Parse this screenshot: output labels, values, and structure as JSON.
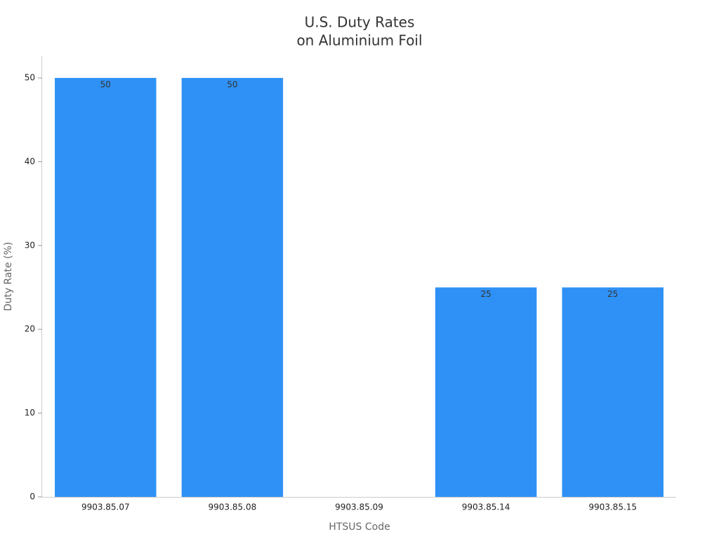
{
  "chart_data": {
    "type": "bar",
    "title": [
      "U.S. Duty Rates",
      "on Aluminium Foil"
    ],
    "xlabel": "HTSUS Code",
    "ylabel": "Duty Rate (%)",
    "categories": [
      "9903.85.07",
      "9903.85.08",
      "9903.85.09",
      "9903.85.14",
      "9903.85.15"
    ],
    "values": [
      50,
      50,
      0,
      25,
      25
    ],
    "value_labels": [
      "50",
      "50",
      null,
      "25",
      "25"
    ],
    "color": "#2f91f6",
    "ylim": [
      0,
      52.6
    ],
    "yticks": [
      0,
      10,
      20,
      30,
      40,
      50
    ],
    "grid": false
  }
}
